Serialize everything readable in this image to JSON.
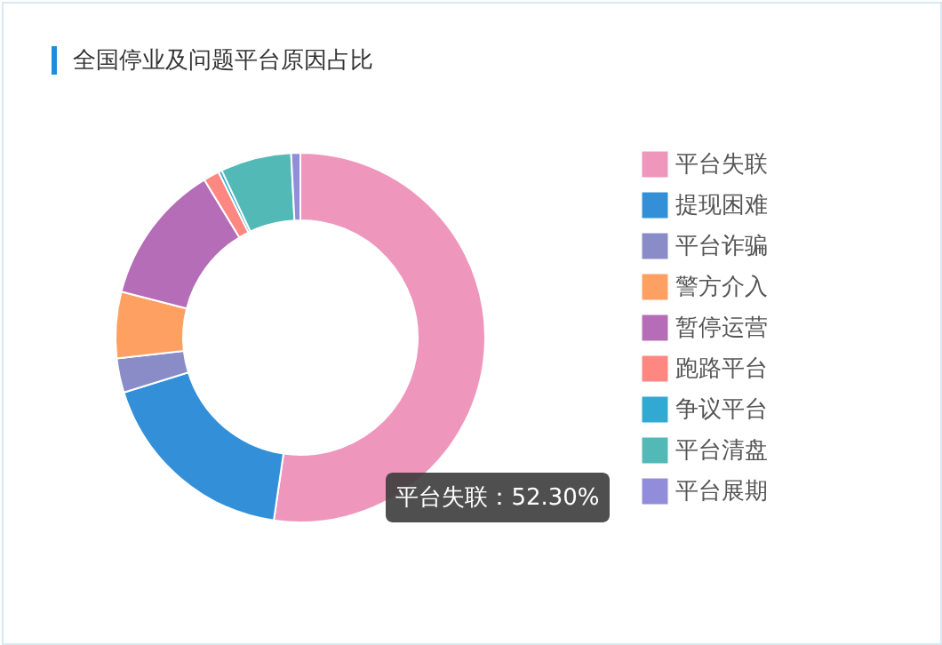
{
  "chart_data": {
    "type": "donut",
    "title": "全国停业及问题平台原因占比",
    "categories": [
      "平台失联",
      "提现困难",
      "平台诈骗",
      "警方介入",
      "暂停运营",
      "跑路平台",
      "争议平台",
      "平台清盘",
      "平台展期"
    ],
    "values": [
      52.3,
      17.9,
      3.0,
      5.8,
      12.3,
      1.4,
      0.3,
      6.2,
      0.8
    ],
    "colors": [
      "#ef96bd",
      "#3390d8",
      "#8a8cc7",
      "#fea062",
      "#b56db8",
      "#fe8781",
      "#32a9d2",
      "#53b9b6",
      "#928ddb"
    ],
    "value_labels": [
      "平台失联：52.30%",
      null,
      null,
      null,
      null,
      null,
      null,
      null,
      null
    ],
    "legend": "right"
  }
}
